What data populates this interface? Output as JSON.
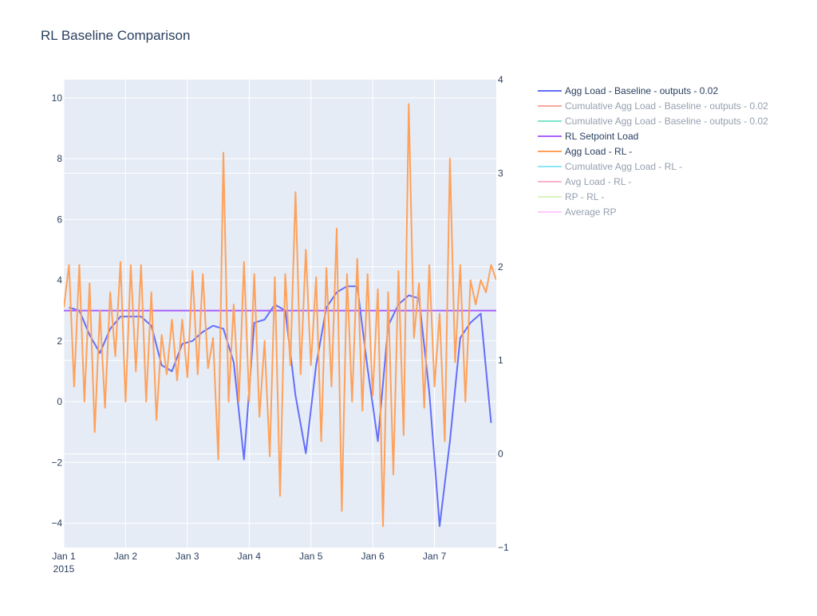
{
  "chart_data": {
    "type": "line",
    "title": "RL Baseline Comparison",
    "x_axis": {
      "type": "date",
      "range": [
        "2015-01-01",
        "2015-01-08"
      ],
      "tick_labels": [
        "Jan 1",
        "Jan 2",
        "Jan 3",
        "Jan 4",
        "Jan 5",
        "Jan 6",
        "Jan 7"
      ],
      "year_label": "2015",
      "grid": true
    },
    "y_axis_left": {
      "range": [
        -4.8,
        10.6
      ],
      "tick_labels": [
        "10",
        "8",
        "6",
        "4",
        "2",
        "0",
        "−2",
        "−4"
      ],
      "grid": true
    },
    "y_axis_right": {
      "range": [
        -1,
        4
      ],
      "tick_labels": [
        "4",
        "3",
        "2",
        "1",
        "0",
        "−1"
      ]
    },
    "legend_position": "right",
    "series": [
      {
        "name": "Agg Load - Baseline - outputs  - 0.02",
        "visible": true,
        "color": "#636efa",
        "x": [
          "2015-01-01T02:00",
          "2015-01-01T06:00",
          "2015-01-01T10:00",
          "2015-01-01T14:00",
          "2015-01-01T18:00",
          "2015-01-01T22:00",
          "2015-01-02T02:00",
          "2015-01-02T06:00",
          "2015-01-02T10:00",
          "2015-01-02T14:00",
          "2015-01-02T18:00",
          "2015-01-02T22:00",
          "2015-01-03T02:00",
          "2015-01-03T06:00",
          "2015-01-03T10:00",
          "2015-01-03T14:00",
          "2015-01-03T18:00",
          "2015-01-03T22:00",
          "2015-01-04T02:00",
          "2015-01-04T06:00",
          "2015-01-04T10:00",
          "2015-01-04T14:00",
          "2015-01-04T18:00",
          "2015-01-04T22:00",
          "2015-01-05T02:00",
          "2015-01-05T06:00",
          "2015-01-05T10:00",
          "2015-01-05T14:00",
          "2015-01-05T18:00",
          "2015-01-05T22:00",
          "2015-01-06T02:00",
          "2015-01-06T06:00",
          "2015-01-06T10:00",
          "2015-01-06T14:00",
          "2015-01-06T18:00",
          "2015-01-06T22:00",
          "2015-01-07T02:00",
          "2015-01-07T06:00",
          "2015-01-07T10:00",
          "2015-01-07T14:00",
          "2015-01-07T18:00",
          "2015-01-07T22:00"
        ],
        "y": [
          3.1,
          3.0,
          2.2,
          1.6,
          2.4,
          2.8,
          2.8,
          2.8,
          2.5,
          1.2,
          1.0,
          1.9,
          2.0,
          2.3,
          2.5,
          2.4,
          1.3,
          -1.9,
          2.6,
          2.7,
          3.2,
          3.0,
          0.2,
          -1.7,
          1.2,
          3.1,
          3.6,
          3.8,
          3.8,
          1.1,
          -1.3,
          2.5,
          3.2,
          3.5,
          3.4,
          0.3,
          -4.1,
          -1.3,
          2.1,
          2.6,
          2.9,
          -0.7
        ]
      },
      {
        "name": "Cumulative Agg Load - Baseline - outputs  - 0.02",
        "visible": false,
        "color": "#ef553b"
      },
      {
        "name": "Cumulative Agg Load - Baseline - outputs  - 0.02",
        "visible": false,
        "color": "#00cc96"
      },
      {
        "name": "RL Setpoint Load",
        "visible": true,
        "color": "#ab63fa",
        "x": [
          "2015-01-01T00:00",
          "2015-01-08T00:00"
        ],
        "y": [
          3.0,
          3.0
        ]
      },
      {
        "name": "Agg Load - RL -",
        "visible": true,
        "color": "#ffa15a",
        "x": [
          "2015-01-01T00:00",
          "2015-01-01T02:00",
          "2015-01-01T04:00",
          "2015-01-01T06:00",
          "2015-01-01T08:00",
          "2015-01-01T10:00",
          "2015-01-01T12:00",
          "2015-01-01T14:00",
          "2015-01-01T16:00",
          "2015-01-01T18:00",
          "2015-01-01T20:00",
          "2015-01-01T22:00",
          "2015-01-02T00:00",
          "2015-01-02T02:00",
          "2015-01-02T04:00",
          "2015-01-02T06:00",
          "2015-01-02T08:00",
          "2015-01-02T10:00",
          "2015-01-02T12:00",
          "2015-01-02T14:00",
          "2015-01-02T16:00",
          "2015-01-02T18:00",
          "2015-01-02T20:00",
          "2015-01-02T22:00",
          "2015-01-03T00:00",
          "2015-01-03T02:00",
          "2015-01-03T04:00",
          "2015-01-03T06:00",
          "2015-01-03T08:00",
          "2015-01-03T10:00",
          "2015-01-03T12:00",
          "2015-01-03T14:00",
          "2015-01-03T16:00",
          "2015-01-03T18:00",
          "2015-01-03T20:00",
          "2015-01-03T22:00",
          "2015-01-04T00:00",
          "2015-01-04T02:00",
          "2015-01-04T04:00",
          "2015-01-04T06:00",
          "2015-01-04T08:00",
          "2015-01-04T10:00",
          "2015-01-04T12:00",
          "2015-01-04T14:00",
          "2015-01-04T16:00",
          "2015-01-04T18:00",
          "2015-01-04T20:00",
          "2015-01-04T22:00",
          "2015-01-05T00:00",
          "2015-01-05T02:00",
          "2015-01-05T04:00",
          "2015-01-05T06:00",
          "2015-01-05T08:00",
          "2015-01-05T10:00",
          "2015-01-05T12:00",
          "2015-01-05T14:00",
          "2015-01-05T16:00",
          "2015-01-05T18:00",
          "2015-01-05T20:00",
          "2015-01-05T22:00",
          "2015-01-06T00:00",
          "2015-01-06T02:00",
          "2015-01-06T04:00",
          "2015-01-06T06:00",
          "2015-01-06T08:00",
          "2015-01-06T10:00",
          "2015-01-06T12:00",
          "2015-01-06T14:00",
          "2015-01-06T16:00",
          "2015-01-06T18:00",
          "2015-01-06T20:00",
          "2015-01-06T22:00",
          "2015-01-07T00:00",
          "2015-01-07T02:00",
          "2015-01-07T04:00",
          "2015-01-07T06:00",
          "2015-01-07T08:00",
          "2015-01-07T10:00",
          "2015-01-07T12:00",
          "2015-01-07T14:00",
          "2015-01-07T16:00",
          "2015-01-07T18:00",
          "2015-01-07T20:00",
          "2015-01-07T22:00",
          "2015-01-08T00:00"
        ],
        "y": [
          3.1,
          4.5,
          0.5,
          4.5,
          0.0,
          3.9,
          -1.0,
          3.0,
          -0.2,
          3.6,
          1.5,
          4.6,
          0.0,
          4.5,
          1.0,
          4.5,
          0.0,
          3.6,
          -0.6,
          2.2,
          0.9,
          2.7,
          0.7,
          2.7,
          0.8,
          4.3,
          0.9,
          4.2,
          1.1,
          2.1,
          -1.9,
          8.2,
          0.0,
          3.2,
          0.0,
          4.6,
          0.0,
          4.2,
          -0.5,
          2.0,
          -1.8,
          4.1,
          -3.1,
          4.2,
          1.2,
          6.9,
          0.9,
          5.0,
          1.2,
          4.1,
          -1.3,
          4.4,
          0.5,
          5.7,
          -3.6,
          4.2,
          0.0,
          4.7,
          -0.3,
          4.2,
          0.2,
          3.7,
          -4.1,
          3.6,
          -2.4,
          4.3,
          -1.1,
          9.8,
          2.1,
          3.9,
          -0.2,
          4.5,
          0.5,
          2.9,
          -1.3,
          8.0,
          1.3,
          4.5,
          0.0,
          4.0,
          3.2,
          4.0,
          3.6,
          4.5,
          4.0
        ]
      },
      {
        "name": "Cumulative Agg Load - RL -",
        "visible": false,
        "color": "#19d3f3"
      },
      {
        "name": "Avg Load - RL -",
        "visible": false,
        "color": "#ff6692"
      },
      {
        "name": "RP - RL -",
        "visible": false,
        "color": "#b6e880"
      },
      {
        "name": "Average RP",
        "visible": false,
        "color": "#ff97ff"
      }
    ]
  }
}
